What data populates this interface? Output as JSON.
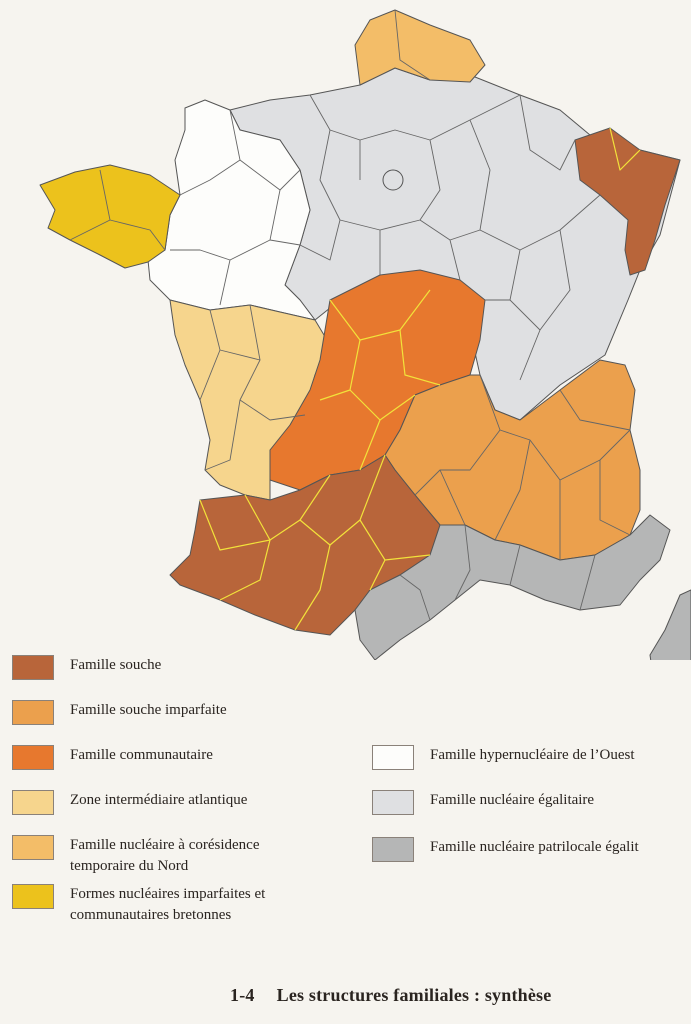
{
  "map": {
    "colors": {
      "famille_souche": "#b8653a",
      "famille_souche_imparfaite": "#eba04d",
      "famille_communautaire": "#e7782e",
      "zone_atlantique": "#f6d58d",
      "nord_coresidence": "#f3bd68",
      "bretonne": "#ecc21c",
      "hypernucleaire_ouest": "#fdfdfb",
      "nucleaire_egalitaire": "#dfe0e2",
      "patrilocale": "#b5b6b6",
      "border_light": "#555555",
      "border_yellow": "#f2e23a"
    }
  },
  "legend": {
    "left": [
      {
        "label": "Famille souche",
        "color": "#b8653a"
      },
      {
        "label": "Famille souche imparfaite",
        "color": "#eba04d"
      },
      {
        "label": "Famille communautaire",
        "color": "#e7782e"
      },
      {
        "label": "Zone intermédiaire atlantique",
        "color": "#f6d58d"
      },
      {
        "label": "Famille nucléaire à corésidence\ntemporaire du Nord",
        "color": "#f3bd68"
      },
      {
        "label": "Formes nucléaires imparfaites et\ncommunautaires bretonnes",
        "color": "#ecc21c"
      }
    ],
    "right": [
      {
        "label": "Famille hypernucléaire de l’Ouest",
        "color": "#fdfdfb"
      },
      {
        "label": "Famille nucléaire égalitaire",
        "color": "#dfe0e2"
      },
      {
        "label": "Famille nucléaire patrilocale égalit",
        "color": "#b5b6b6"
      }
    ]
  },
  "caption": {
    "number": "1-4",
    "title": "Les structures familiales : synthèse"
  }
}
